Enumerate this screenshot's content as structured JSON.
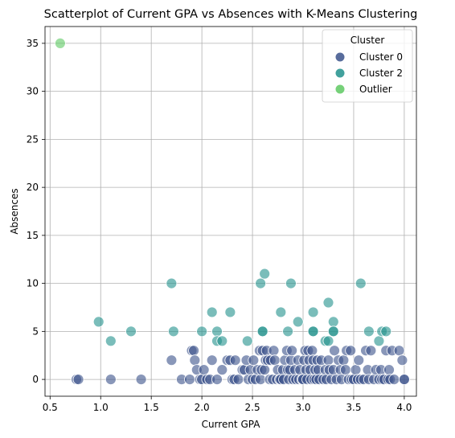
{
  "chart_data": {
    "type": "scatter",
    "title": "Scatterplot of Current GPA vs Absences with K-Means Clustering",
    "xlabel": "Current GPA",
    "ylabel": "Absences",
    "xlim": [
      0.45,
      4.12
    ],
    "ylim": [
      -1.75,
      36.75
    ],
    "xticks": [
      0.5,
      1.0,
      1.5,
      2.0,
      2.5,
      3.0,
      3.5,
      4.0
    ],
    "xtick_labels": [
      "0.5",
      "1.0",
      "1.5",
      "2.0",
      "2.5",
      "3.0",
      "3.5",
      "4.0"
    ],
    "yticks": [
      0,
      5,
      10,
      15,
      20,
      25,
      30,
      35
    ],
    "ytick_labels": [
      "0",
      "5",
      "10",
      "15",
      "20",
      "25",
      "30",
      "35"
    ],
    "grid": true,
    "legend": {
      "title": "Cluster",
      "position": "top-right",
      "entries": [
        "Cluster 0",
        "Cluster 2",
        "Outlier"
      ]
    },
    "series": [
      {
        "name": "Cluster 0",
        "color": "#3b528b",
        "points": [
          [
            0.76,
            0
          ],
          [
            0.78,
            0
          ],
          [
            1.1,
            0
          ],
          [
            1.4,
            0
          ],
          [
            1.7,
            2
          ],
          [
            1.8,
            0
          ],
          [
            1.88,
            0
          ],
          [
            1.9,
            3
          ],
          [
            1.92,
            3
          ],
          [
            1.93,
            2
          ],
          [
            1.95,
            1
          ],
          [
            1.98,
            0
          ],
          [
            2.0,
            0
          ],
          [
            2.02,
            1
          ],
          [
            2.05,
            0
          ],
          [
            2.08,
            0
          ],
          [
            2.1,
            2
          ],
          [
            2.15,
            0
          ],
          [
            2.2,
            1
          ],
          [
            2.25,
            2
          ],
          [
            2.28,
            2
          ],
          [
            2.3,
            0
          ],
          [
            2.32,
            0
          ],
          [
            2.33,
            2
          ],
          [
            2.36,
            0
          ],
          [
            2.4,
            1
          ],
          [
            2.42,
            1
          ],
          [
            2.44,
            2
          ],
          [
            2.46,
            0
          ],
          [
            2.48,
            1
          ],
          [
            2.5,
            0
          ],
          [
            2.51,
            2
          ],
          [
            2.53,
            0
          ],
          [
            2.55,
            1
          ],
          [
            2.57,
            3
          ],
          [
            2.58,
            0
          ],
          [
            2.59,
            1
          ],
          [
            2.6,
            3
          ],
          [
            2.62,
            1
          ],
          [
            2.63,
            2
          ],
          [
            2.64,
            3
          ],
          [
            2.65,
            2
          ],
          [
            2.67,
            0
          ],
          [
            2.68,
            2
          ],
          [
            2.7,
            0
          ],
          [
            2.71,
            3
          ],
          [
            2.72,
            2
          ],
          [
            2.74,
            0
          ],
          [
            2.75,
            1
          ],
          [
            2.77,
            0
          ],
          [
            2.78,
            0
          ],
          [
            2.8,
            1
          ],
          [
            2.81,
            0
          ],
          [
            2.82,
            2
          ],
          [
            2.84,
            3
          ],
          [
            2.85,
            1
          ],
          [
            2.86,
            0
          ],
          [
            2.87,
            1
          ],
          [
            2.88,
            2
          ],
          [
            2.89,
            3
          ],
          [
            2.9,
            0
          ],
          [
            2.92,
            1
          ],
          [
            2.93,
            0
          ],
          [
            2.95,
            2
          ],
          [
            2.96,
            0
          ],
          [
            2.97,
            1
          ],
          [
            2.99,
            0
          ],
          [
            3.0,
            0
          ],
          [
            3.01,
            2
          ],
          [
            3.02,
            3
          ],
          [
            3.03,
            1
          ],
          [
            3.04,
            0
          ],
          [
            3.05,
            3
          ],
          [
            3.06,
            2
          ],
          [
            3.07,
            1
          ],
          [
            3.08,
            0
          ],
          [
            3.09,
            3
          ],
          [
            3.1,
            2
          ],
          [
            3.11,
            0
          ],
          [
            3.12,
            1
          ],
          [
            3.13,
            0
          ],
          [
            3.14,
            2
          ],
          [
            3.15,
            1
          ],
          [
            3.16,
            0
          ],
          [
            3.18,
            2
          ],
          [
            3.2,
            0
          ],
          [
            3.22,
            1
          ],
          [
            3.23,
            0
          ],
          [
            3.25,
            2
          ],
          [
            3.26,
            1
          ],
          [
            3.28,
            0
          ],
          [
            3.3,
            1
          ],
          [
            3.31,
            3
          ],
          [
            3.33,
            0
          ],
          [
            3.35,
            2
          ],
          [
            3.37,
            1
          ],
          [
            3.38,
            0
          ],
          [
            3.4,
            2
          ],
          [
            3.42,
            1
          ],
          [
            3.43,
            3
          ],
          [
            3.45,
            0
          ],
          [
            3.47,
            3
          ],
          [
            3.48,
            0
          ],
          [
            3.5,
            0
          ],
          [
            3.52,
            1
          ],
          [
            3.54,
            0
          ],
          [
            3.55,
            2
          ],
          [
            3.57,
            0
          ],
          [
            3.6,
            0
          ],
          [
            3.62,
            3
          ],
          [
            3.64,
            1
          ],
          [
            3.65,
            0
          ],
          [
            3.67,
            3
          ],
          [
            3.7,
            0
          ],
          [
            3.72,
            1
          ],
          [
            3.75,
            0
          ],
          [
            3.77,
            1
          ],
          [
            3.78,
            0
          ],
          [
            3.8,
            0
          ],
          [
            3.82,
            3
          ],
          [
            3.84,
            0
          ],
          [
            3.85,
            1
          ],
          [
            3.86,
            0
          ],
          [
            3.88,
            3
          ],
          [
            3.9,
            0
          ],
          [
            3.95,
            3
          ],
          [
            3.98,
            2
          ],
          [
            4.0,
            0
          ],
          [
            4.0,
            0
          ]
        ]
      },
      {
        "name": "Cluster 2",
        "color": "#21918c",
        "points": [
          [
            0.98,
            6
          ],
          [
            1.1,
            4
          ],
          [
            1.3,
            5
          ],
          [
            1.7,
            10
          ],
          [
            1.72,
            5
          ],
          [
            2.0,
            5
          ],
          [
            2.1,
            7
          ],
          [
            2.15,
            5
          ],
          [
            2.15,
            4
          ],
          [
            2.2,
            4
          ],
          [
            2.28,
            7
          ],
          [
            2.45,
            4
          ],
          [
            2.58,
            10
          ],
          [
            2.6,
            5
          ],
          [
            2.6,
            5
          ],
          [
            2.62,
            11
          ],
          [
            2.78,
            7
          ],
          [
            2.85,
            5
          ],
          [
            2.88,
            10
          ],
          [
            2.95,
            6
          ],
          [
            3.1,
            7
          ],
          [
            3.1,
            5
          ],
          [
            3.1,
            5
          ],
          [
            3.22,
            4
          ],
          [
            3.25,
            8
          ],
          [
            3.25,
            4
          ],
          [
            3.3,
            6
          ],
          [
            3.3,
            5
          ],
          [
            3.3,
            5
          ],
          [
            3.57,
            10
          ],
          [
            3.65,
            5
          ],
          [
            3.75,
            4
          ],
          [
            3.78,
            5
          ],
          [
            3.82,
            5
          ]
        ]
      },
      {
        "name": "Outlier",
        "color": "#5ec962",
        "points": [
          [
            0.6,
            35
          ]
        ]
      }
    ]
  }
}
